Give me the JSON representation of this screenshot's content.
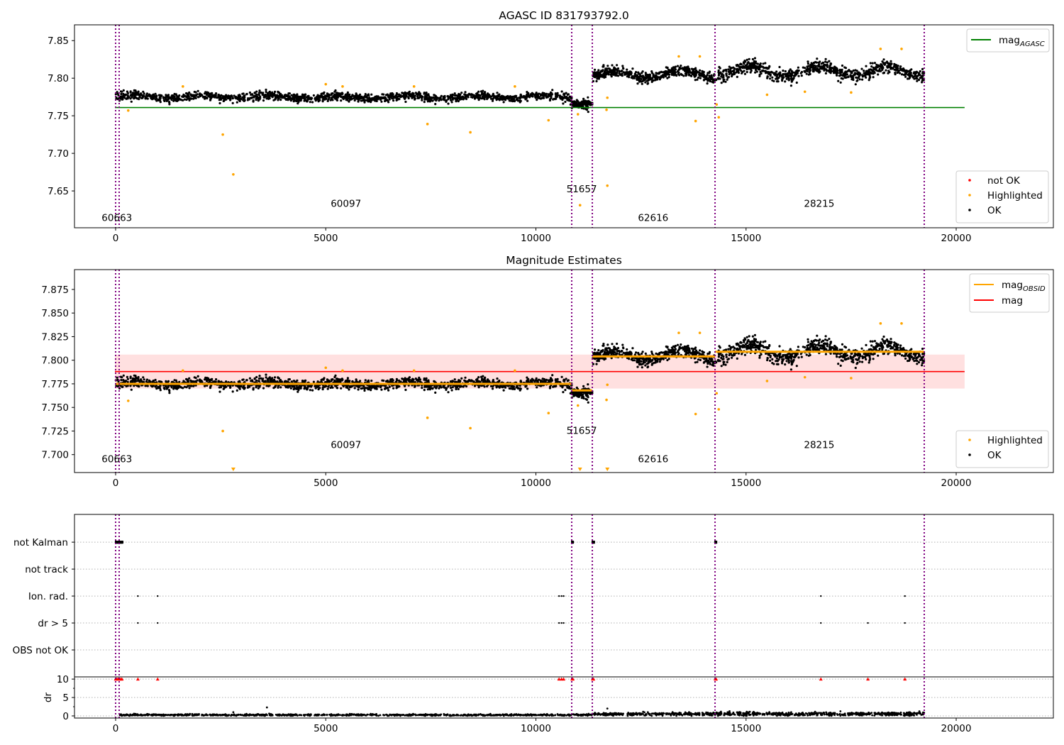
{
  "chart_data": [
    {
      "type": "scatter",
      "title": "AGASC ID 831793792.0",
      "xlim": [
        -979,
        22312
      ],
      "ylim": [
        7.601,
        7.871
      ],
      "xticks": [
        0,
        5000,
        10000,
        15000,
        20000
      ],
      "xtick_labels": [
        "0",
        "5000",
        "10000",
        "15000",
        "20000"
      ],
      "yticks": [
        7.65,
        7.7,
        7.75,
        7.8,
        7.85
      ],
      "ytick_labels": [
        "7.65",
        "7.70",
        "7.75",
        "7.80",
        "7.85"
      ],
      "vlines": [
        0,
        84,
        10852,
        11342,
        14262,
        19240
      ],
      "hlines": [
        {
          "name": "mag-agasc-line",
          "y": 7.761,
          "x": [
            -17,
            20200
          ],
          "color": "#008000"
        }
      ],
      "segments": [
        {
          "x": [
            0,
            10852
          ],
          "mean": 7.775,
          "sd": 0.0045,
          "wave": 0.002,
          "n": 1500
        },
        {
          "x": [
            10852,
            11342
          ],
          "mean": 7.767,
          "sd": 0.005,
          "wave": 0.001,
          "n": 120
        },
        {
          "x": [
            11342,
            14262
          ],
          "mean": 7.805,
          "sd": 0.006,
          "wave": 0.005,
          "n": 500
        },
        {
          "x": [
            14262,
            19240
          ],
          "mean": 7.809,
          "sd": 0.007,
          "wave": 0.007,
          "n": 800
        }
      ],
      "highlighted": [
        [
          2550,
          7.725
        ],
        [
          2800,
          7.672
        ],
        [
          7420,
          7.739
        ],
        [
          8440,
          7.728
        ],
        [
          10300,
          7.744
        ],
        [
          11050,
          7.631
        ],
        [
          11700,
          7.657
        ],
        [
          13800,
          7.743
        ],
        [
          14350,
          7.748
        ],
        [
          11000,
          7.752
        ],
        [
          11680,
          7.758
        ],
        [
          300,
          7.757
        ],
        [
          1600,
          7.789
        ],
        [
          5000,
          7.792
        ],
        [
          5400,
          7.789
        ],
        [
          7100,
          7.789
        ],
        [
          9500,
          7.789
        ],
        [
          13400,
          7.829
        ],
        [
          13900,
          7.829
        ],
        [
          15500,
          7.778
        ],
        [
          16400,
          7.782
        ],
        [
          17500,
          7.781
        ],
        [
          18200,
          7.839
        ],
        [
          18700,
          7.839
        ],
        [
          14300,
          7.765
        ],
        [
          11700,
          7.774
        ]
      ],
      "annotations": [
        {
          "text": "60663",
          "x": 30,
          "y": 7.61
        },
        {
          "text": "60097",
          "x": 5480,
          "y": 7.629
        },
        {
          "text": "51657",
          "x": 11090,
          "y": 7.648
        },
        {
          "text": "62616",
          "x": 12790,
          "y": 7.61
        },
        {
          "text": "28215",
          "x": 16740,
          "y": 7.629
        }
      ],
      "legend_lines": [
        {
          "label": "mag",
          "sub": "AGASC",
          "color": "#008000"
        }
      ],
      "legend_points": [
        {
          "label": "not OK",
          "color": "#ff0000"
        },
        {
          "label": "Highlighted",
          "color": "#ffa500"
        },
        {
          "label": "OK",
          "color": "#000000"
        }
      ]
    },
    {
      "type": "scatter",
      "title": "Magnitude Estimates",
      "xlim": [
        -979,
        22312
      ],
      "ylim": [
        7.681,
        7.896
      ],
      "xticks": [
        0,
        5000,
        10000,
        15000,
        20000
      ],
      "xtick_labels": [
        "0",
        "5000",
        "10000",
        "15000",
        "20000"
      ],
      "yticks": [
        7.7,
        7.725,
        7.75,
        7.775,
        7.8,
        7.825,
        7.85,
        7.875
      ],
      "ytick_labels": [
        "7.700",
        "7.725",
        "7.750",
        "7.775",
        "7.800",
        "7.825",
        "7.850",
        "7.875"
      ],
      "vlines": [
        0,
        84,
        10852,
        11342,
        14262,
        19240
      ],
      "band": {
        "y": [
          7.77,
          7.806
        ],
        "x": [
          -17,
          20200
        ],
        "color": "#ff0000"
      },
      "hlines": [
        {
          "name": "mag-line",
          "y": 7.788,
          "x": [
            -17,
            20200
          ],
          "color": "#ff0000"
        },
        {
          "name": "mag-obsid-line",
          "y": 7.775,
          "x": [
            0,
            10852
          ],
          "color": "#ffa500"
        },
        {
          "name": "mag-obsid-line",
          "y": 7.768,
          "x": [
            10852,
            11342
          ],
          "color": "#ffa500"
        },
        {
          "name": "mag-obsid-line",
          "y": 7.804,
          "x": [
            11342,
            14262
          ],
          "color": "#ffa500"
        },
        {
          "name": "mag-obsid-line",
          "y": 7.809,
          "x": [
            14262,
            19240
          ],
          "color": "#ffa500"
        }
      ],
      "segments": [
        {
          "x": [
            0,
            10852
          ],
          "mean": 7.775,
          "sd": 0.0045,
          "wave": 0.002,
          "n": 1500
        },
        {
          "x": [
            10852,
            11342
          ],
          "mean": 7.767,
          "sd": 0.005,
          "wave": 0.001,
          "n": 120
        },
        {
          "x": [
            11342,
            14262
          ],
          "mean": 7.805,
          "sd": 0.006,
          "wave": 0.005,
          "n": 500
        },
        {
          "x": [
            14262,
            19240
          ],
          "mean": 7.809,
          "sd": 0.007,
          "wave": 0.007,
          "n": 800
        }
      ],
      "highlighted": [
        [
          2550,
          7.725
        ],
        [
          2800,
          7.672
        ],
        [
          7420,
          7.739
        ],
        [
          8440,
          7.728
        ],
        [
          10300,
          7.744
        ],
        [
          11050,
          7.631
        ],
        [
          11700,
          7.657
        ],
        [
          13800,
          7.743
        ],
        [
          14350,
          7.748
        ],
        [
          11000,
          7.752
        ],
        [
          11680,
          7.758
        ],
        [
          300,
          7.757
        ],
        [
          1600,
          7.789
        ],
        [
          5000,
          7.792
        ],
        [
          5400,
          7.789
        ],
        [
          7100,
          7.789
        ],
        [
          9500,
          7.789
        ],
        [
          13400,
          7.829
        ],
        [
          13900,
          7.829
        ],
        [
          15500,
          7.778
        ],
        [
          16400,
          7.782
        ],
        [
          17500,
          7.781
        ],
        [
          18200,
          7.839
        ],
        [
          18700,
          7.839
        ],
        [
          14300,
          7.765
        ],
        [
          11700,
          7.774
        ]
      ],
      "annotations": [
        {
          "text": "60663",
          "x": 30,
          "y": 7.692
        },
        {
          "text": "60097",
          "x": 5480,
          "y": 7.707
        },
        {
          "text": "51657",
          "x": 11090,
          "y": 7.722
        },
        {
          "text": "62616",
          "x": 12790,
          "y": 7.692
        },
        {
          "text": "28215",
          "x": 16740,
          "y": 7.707
        }
      ],
      "legend_lines": [
        {
          "label": "mag",
          "sub": "OBSID",
          "color": "#ffa500"
        },
        {
          "label": "mag",
          "sub": "",
          "color": "#ff0000"
        }
      ],
      "legend_points": [
        {
          "label": "Highlighted",
          "color": "#ffa500"
        },
        {
          "label": "OK",
          "color": "#000000"
        }
      ]
    },
    {
      "type": "scatter",
      "xlim": [
        -979,
        22312
      ],
      "xticks": [
        0,
        5000,
        10000,
        15000,
        20000
      ],
      "xtick_labels": [
        "0",
        "5000",
        "10000",
        "15000",
        "20000"
      ],
      "vlines": [
        0,
        84,
        10852,
        11342,
        14262,
        19240
      ],
      "flag_categories": [
        "OBS not OK",
        "dr > 5",
        "Ion. rad.",
        "not track",
        "not Kalman"
      ],
      "flag_ylim": [
        -1.0,
        5.03
      ],
      "not_kalman_ranges": [
        [
          0,
          170
        ],
        [
          10852,
          10890
        ],
        [
          11342,
          11390
        ],
        [
          14262,
          14300
        ]
      ],
      "ion_rad_x": [
        530,
        1000,
        10550,
        10610,
        10660,
        16780,
        18780
      ],
      "dr5_x": [
        530,
        1000,
        10550,
        10610,
        10660,
        16780,
        17900,
        18780
      ],
      "dr_ylabel": "dr",
      "dr_ylim": [
        -0.58,
        10.6
      ],
      "dr_yticks": [
        0,
        5,
        10
      ],
      "dr_ytick_labels": [
        "0",
        "5",
        "10"
      ],
      "dr_clipped_x": [
        0,
        30,
        60,
        90,
        120,
        150,
        530,
        1000,
        10550,
        10610,
        10660,
        10860,
        10880,
        11350,
        11370,
        14270,
        14290,
        16780,
        17900,
        18780
      ],
      "dr_outliers": [
        [
          2800,
          1.0
        ],
        [
          3600,
          2.3
        ],
        [
          11700,
          2.0
        ]
      ],
      "dr_segments": [
        {
          "x": [
            84,
            10852
          ],
          "mean": 0.25,
          "sd": 0.12,
          "n": 900
        },
        {
          "x": [
            10852,
            11342
          ],
          "mean": 0.3,
          "sd": 0.15,
          "n": 50
        },
        {
          "x": [
            11342,
            14262
          ],
          "mean": 0.5,
          "sd": 0.2,
          "n": 300
        },
        {
          "x": [
            14262,
            19240
          ],
          "mean": 0.55,
          "sd": 0.25,
          "n": 500
        }
      ]
    }
  ]
}
